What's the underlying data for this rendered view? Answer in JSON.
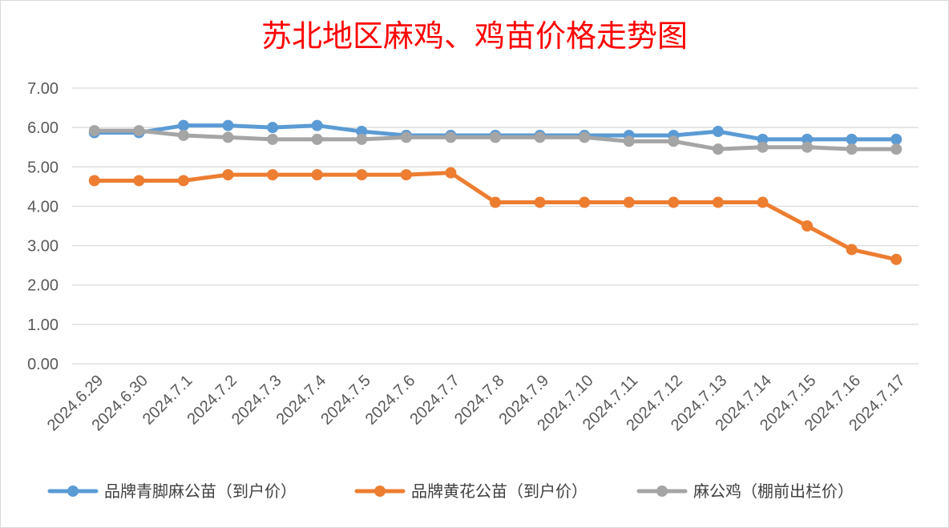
{
  "chart_data": {
    "type": "line",
    "title": "苏北地区麻鸡、鸡苗价格走势图",
    "xlabel": "",
    "ylabel": "",
    "ylim": [
      0,
      7
    ],
    "yticks": [
      "0.00",
      "1.00",
      "2.00",
      "3.00",
      "4.00",
      "5.00",
      "6.00",
      "7.00"
    ],
    "grid": true,
    "legend_position": "bottom",
    "categories": [
      "2024.6.29",
      "2024.6.30",
      "2024.7.1",
      "2024.7.2",
      "2024.7.3",
      "2024.7.4",
      "2024.7.5",
      "2024.7.6",
      "2024.7.7",
      "2024.7.8",
      "2024.7.9",
      "2024.7.10",
      "2024.7.11",
      "2024.7.12",
      "2024.7.13",
      "2024.7.14",
      "2024.7.15",
      "2024.7.16",
      "2024.7.17"
    ],
    "series": [
      {
        "name": "品牌青脚麻公苗（到户价）",
        "color": "#5b9bd5",
        "values": [
          5.87,
          5.87,
          6.05,
          6.05,
          6.0,
          6.05,
          5.9,
          5.8,
          5.8,
          5.8,
          5.8,
          5.8,
          5.8,
          5.8,
          5.9,
          5.7,
          5.7,
          5.7,
          5.7
        ]
      },
      {
        "name": "品牌黄花公苗（到户价）",
        "color": "#ed7d31",
        "values": [
          4.65,
          4.65,
          4.65,
          4.8,
          4.8,
          4.8,
          4.8,
          4.8,
          4.85,
          4.1,
          4.1,
          4.1,
          4.1,
          4.1,
          4.1,
          4.1,
          3.5,
          2.9,
          2.65
        ]
      },
      {
        "name": "麻公鸡（棚前出栏价）",
        "color": "#a5a5a5",
        "values": [
          5.92,
          5.92,
          5.8,
          5.75,
          5.7,
          5.7,
          5.7,
          5.75,
          5.75,
          5.75,
          5.75,
          5.75,
          5.65,
          5.65,
          5.45,
          5.5,
          5.5,
          5.45,
          5.45
        ]
      }
    ]
  }
}
